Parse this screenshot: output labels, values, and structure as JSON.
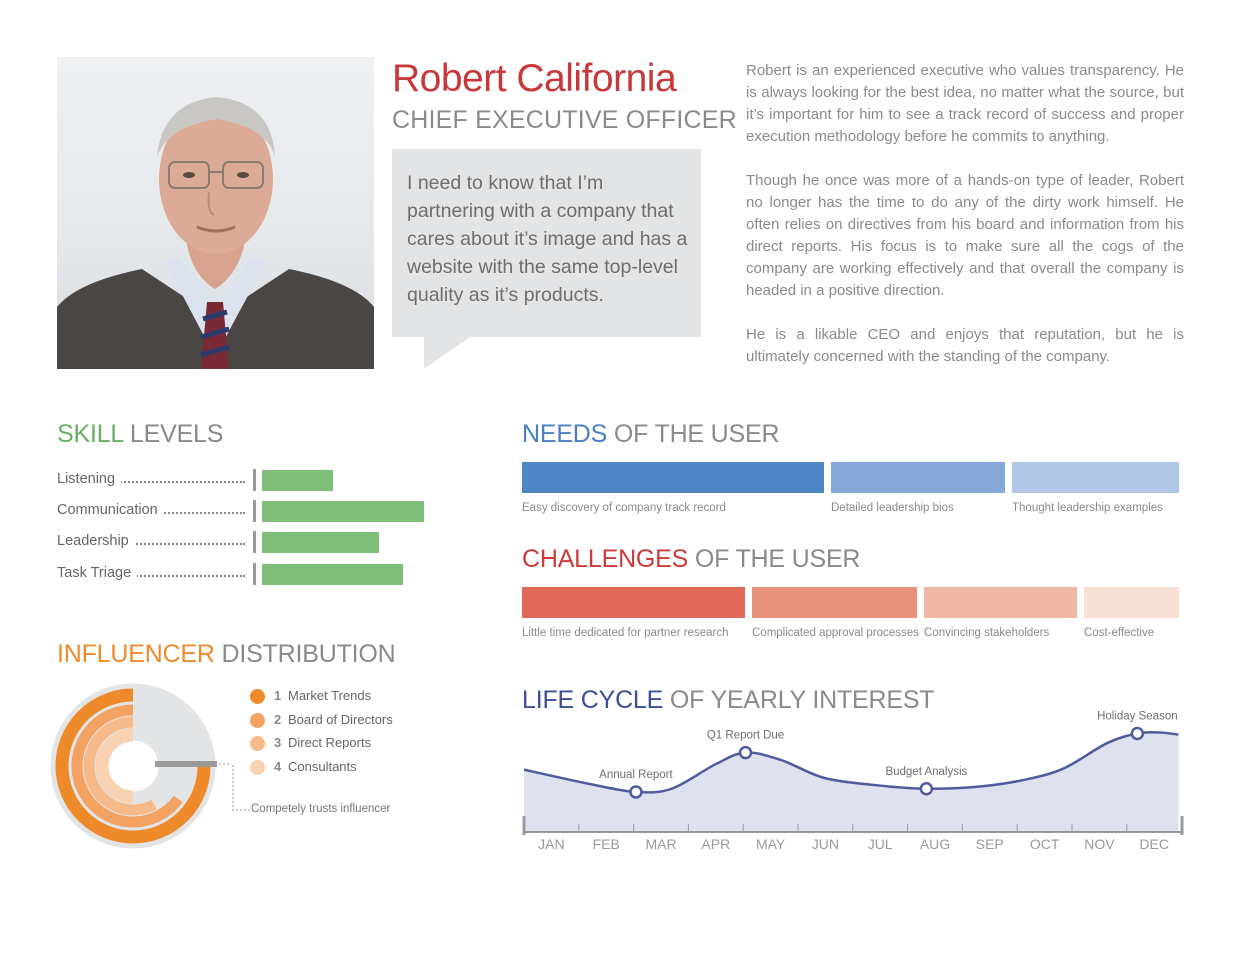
{
  "persona": {
    "name": "Robert California",
    "title": "CHIEF EXECUTIVE OFFICER",
    "quote": "I need to know that I’m partnering with a company that cares about it’s image and has a website with the same top-level quality as it’s products.",
    "bio": [
      "Robert is an experienced executive who values transparency. He is always looking for the best idea, no matter what the source, but it’s important for him to see a track record of success and proper execution methodology before he commits to anything.",
      "Though he once was more of a hands-on type of leader, Robert no longer has the time to do any of the dirty work himself. He often relies on directives from his board and information from his direct reports. His focus is to make sure all the cogs of the company are working effectively and that overall the company is headed in a positive direction.",
      "He is a likable CEO and enjoys that reputation, but he is ultimately concerned with the standing of the company."
    ]
  },
  "skills": {
    "title_accent": "SKILL",
    "title_rest": " LEVELS",
    "accent_color": "#6aae63",
    "items": [
      {
        "label": "Listening",
        "level": 0.44
      },
      {
        "label": "Communication",
        "level": 1.0
      },
      {
        "label": "Leadership",
        "level": 0.72
      },
      {
        "label": "Task Triage",
        "level": 0.87
      }
    ]
  },
  "influencer": {
    "title_accent": "INFLUENCER",
    "title_rest": " DISTRIBUTION",
    "accent_color": "#ef8a2a",
    "legend": [
      {
        "num": "1",
        "label": "Market Trends",
        "color": "#ef8a2a",
        "fraction": 0.75
      },
      {
        "num": "2",
        "label": "Board of Directors",
        "color": "#f3a262",
        "fraction": 0.65
      },
      {
        "num": "3",
        "label": "Direct Reports",
        "color": "#f6ba8a",
        "fraction": 0.58
      },
      {
        "num": "4",
        "label": "Consultants",
        "color": "#f9d2b2",
        "fraction": 0.5
      }
    ],
    "note": "Competely trusts influencer"
  },
  "needs": {
    "title_accent": "NEEDS",
    "title_rest": " OF THE USER",
    "accent_color": "#4a80c1",
    "items": [
      {
        "label": "Easy discovery of company track record",
        "color": "#4f86c6",
        "weight": 0.47
      },
      {
        "label": "Detailed leadership bios",
        "color": "#86a8d8",
        "weight": 0.27
      },
      {
        "label": "Thought leadership examples",
        "color": "#b0c6e6",
        "weight": 0.26
      }
    ]
  },
  "challenges": {
    "title_accent": "CHALLENGES",
    "title_rest": " OF THE USER",
    "accent_color": "#cc3a3a",
    "items": [
      {
        "label": "Little time dedicated for partner research",
        "color": "#e0695a",
        "weight": 0.35
      },
      {
        "label": "Complicated approval processes",
        "color": "#e8937c",
        "weight": 0.26
      },
      {
        "label": "Convincing stakeholders",
        "color": "#efb8a6",
        "weight": 0.24
      },
      {
        "label": "Cost-effective",
        "color": "#f6e0d6",
        "weight": 0.15
      }
    ]
  },
  "lifecycle": {
    "title_accent": "LIFE CYCLE",
    "title_rest": " OF YEARLY INTEREST",
    "accent_color": "#3d4d99",
    "line_color": "#525a9e",
    "fill_color": "#e0e1ee"
  },
  "chart_data": {
    "type": "area",
    "title": "LIFE CYCLE OF YEARLY INTEREST",
    "xlabel": "",
    "ylabel": "",
    "x": [
      "JAN",
      "FEB",
      "MAR",
      "APR",
      "MAY",
      "JUN",
      "JUL",
      "AUG",
      "SEP",
      "OCT",
      "NOV",
      "DEC"
    ],
    "x_ticks": [
      "JAN",
      "FEB",
      "MAR",
      "APR",
      "MAY",
      "JUN",
      "JUL",
      "AUG",
      "SEP",
      "OCT",
      "NOV",
      "DEC"
    ],
    "curve": [
      {
        "m": 0.0,
        "v": 0.38
      },
      {
        "m": 0.75,
        "v": 0.24
      },
      {
        "m": 1.55,
        "v": 0.17
      },
      {
        "m": 2.2,
        "v": 0.2
      },
      {
        "m": 3.0,
        "v": 0.43
      },
      {
        "m": 3.55,
        "v": 0.54
      },
      {
        "m": 4.2,
        "v": 0.47
      },
      {
        "m": 5.0,
        "v": 0.3
      },
      {
        "m": 6.0,
        "v": 0.23
      },
      {
        "m": 6.85,
        "v": 0.2
      },
      {
        "m": 7.8,
        "v": 0.22
      },
      {
        "m": 8.6,
        "v": 0.28
      },
      {
        "m": 9.35,
        "v": 0.39
      },
      {
        "m": 10.15,
        "v": 0.63
      },
      {
        "m": 10.7,
        "v": 0.72
      },
      {
        "m": 11.1,
        "v": 0.73
      },
      {
        "m": 11.45,
        "v": 0.71
      }
    ],
    "annotations": [
      {
        "label": "Annual Report",
        "m": 1.55,
        "v": 0.17
      },
      {
        "label": "Q1 Report Due",
        "m": 3.55,
        "v": 0.54
      },
      {
        "label": "Budget Analysis",
        "m": 6.85,
        "v": 0.2
      },
      {
        "label": "Holiday Season",
        "m": 10.7,
        "v": 0.72
      }
    ],
    "ylim": [
      0,
      1
    ],
    "grid": false
  }
}
